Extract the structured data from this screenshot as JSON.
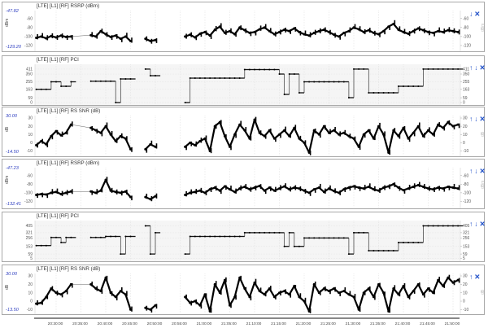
{
  "chart_data": {
    "type": "scatter",
    "x_start": "20:26:00",
    "x_step": "1 min",
    "x_ticks": [
      "20:30:00",
      "20:35:00",
      "20:40:00",
      "20:45:00",
      "20:50:00",
      "20:55:00",
      "21:00:00",
      "21:05:00",
      "21:10:00",
      "21:15:00",
      "21:20:00",
      "21:25:00",
      "21:30:00",
      "21:35:00",
      "21:40:00",
      "21:45:00",
      "21:50:00"
    ],
    "grid": true,
    "panels": [
      {
        "kind": "signal",
        "title": "[LTE] [L1] [RF] RSRP (dBm)",
        "unit": "dBm",
        "max_label": "-47.82",
        "min_label": "-129.20",
        "ylim": [
          -129.2,
          -47.82
        ],
        "yticks": [
          -60,
          -80,
          -100,
          -120
        ],
        "icons": [
          "arrow-down",
          "close"
        ],
        "values": [
          -103,
          -100,
          -104,
          -99,
          -102,
          -98,
          -101,
          -100,
          null,
          null,
          null,
          -97,
          -100,
          -88,
          -95,
          -101,
          -98,
          -105,
          -100,
          -110,
          null,
          null,
          -105,
          -110,
          -108,
          null,
          null,
          null,
          null,
          null,
          -100,
          -96,
          -102,
          -94,
          -90,
          -98,
          -85,
          -78,
          -92,
          -88,
          -95,
          -80,
          -86,
          -92,
          -90,
          -84,
          -80,
          -88,
          -95,
          -90,
          -85,
          -88,
          -82,
          -90,
          -95,
          -98,
          -92,
          -88,
          -85,
          -90,
          -96,
          -100,
          -92,
          -88,
          -80,
          -84,
          -90,
          -86,
          -92,
          -95,
          -88,
          -78,
          -72,
          -85,
          -90,
          -94,
          -88,
          -82,
          -86,
          -90,
          -92,
          -88,
          -90,
          -86,
          -88,
          -90
        ]
      },
      {
        "kind": "step",
        "title": "[LTE] [L1] [RF] PCI",
        "unit": "",
        "max_label": "",
        "min_label": "",
        "ylim": [
          -10,
          440
        ],
        "yticks": [
          411,
          350,
          255,
          163,
          59,
          0
        ],
        "icons": [
          "arrow-up",
          "arrow-down",
          "close"
        ],
        "values": [
          163,
          163,
          163,
          255,
          255,
          200,
          200,
          255,
          null,
          null,
          null,
          262,
          262,
          262,
          262,
          262,
          0,
          290,
          290,
          290,
          null,
          null,
          411,
          330,
          330,
          null,
          null,
          null,
          null,
          null,
          0,
          300,
          300,
          300,
          300,
          300,
          300,
          300,
          300,
          300,
          300,
          300,
          405,
          405,
          405,
          405,
          405,
          405,
          405,
          350,
          100,
          350,
          350,
          120,
          255,
          255,
          255,
          255,
          255,
          255,
          255,
          255,
          255,
          60,
          411,
          411,
          411,
          120,
          120,
          120,
          120,
          120,
          120,
          200,
          200,
          200,
          200,
          200,
          411,
          411,
          411,
          411,
          411,
          411,
          411,
          411
        ]
      },
      {
        "kind": "signal",
        "title": "[LTE] [L1] [RF] RS SNR (dB)",
        "unit": "dB",
        "max_label": "30.00",
        "min_label": "-14.50",
        "ylim": [
          -14.5,
          30
        ],
        "yticks": [
          30,
          20,
          10,
          0,
          -10
        ],
        "icons": [
          "arrow-up",
          "arrow-down",
          "close"
        ],
        "values": [
          -3,
          2,
          -2,
          8,
          14,
          9,
          12,
          22,
          null,
          null,
          null,
          18,
          15,
          12,
          20,
          10,
          2,
          8,
          5,
          -8,
          null,
          null,
          -8,
          -2,
          -5,
          null,
          null,
          null,
          null,
          null,
          -5,
          0,
          -3,
          2,
          5,
          -10,
          20,
          25,
          8,
          -5,
          10,
          22,
          15,
          5,
          28,
          12,
          8,
          15,
          5,
          10,
          15,
          8,
          18,
          5,
          0,
          -12,
          15,
          10,
          20,
          12,
          15,
          10,
          12,
          8,
          5,
          -5,
          10,
          15,
          5,
          20,
          10,
          -12,
          15,
          8,
          18,
          5,
          12,
          20,
          8,
          15,
          10,
          22,
          18,
          25,
          20,
          22
        ]
      },
      {
        "kind": "signal",
        "title": "[LTE] [L1] [RF] RSRP (dBm)",
        "unit": "dBm",
        "max_label": "-47.23",
        "min_label": "-132.41",
        "ylim": [
          -132.41,
          -47.23
        ],
        "yticks": [
          -60,
          -80,
          -100,
          -120
        ],
        "icons": [
          "arrow-up",
          "arrow-down",
          "close"
        ],
        "values": [
          -105,
          -103,
          -104,
          -100,
          -98,
          -103,
          -100,
          -97,
          null,
          null,
          null,
          -97,
          -100,
          -95,
          -70,
          -95,
          -98,
          -100,
          -97,
          -110,
          null,
          null,
          -110,
          -115,
          -108,
          null,
          null,
          null,
          null,
          null,
          -105,
          -100,
          -98,
          -95,
          -100,
          -92,
          -88,
          -95,
          -85,
          -92,
          -98,
          -90,
          -86,
          -92,
          -88,
          -84,
          -95,
          -88,
          -95,
          -90,
          -85,
          -92,
          -88,
          -90,
          -95,
          -100,
          -92,
          -88,
          -98,
          -90,
          -96,
          -100,
          -92,
          -88,
          -85,
          -88,
          -90,
          -86,
          -92,
          -95,
          -88,
          -85,
          -80,
          -88,
          -94,
          -90,
          -86,
          -82,
          -86,
          -90,
          -92,
          -88,
          -90,
          -86,
          -88,
          -90
        ]
      },
      {
        "kind": "step",
        "title": "[LTE] [L1] [RF] PCI",
        "unit": "",
        "max_label": "",
        "min_label": "",
        "ylim": [
          -10,
          440
        ],
        "yticks": [
          405,
          321,
          256,
          153,
          59,
          5
        ],
        "icons": [
          "arrow-up",
          "arrow-down",
          "close"
        ],
        "values": [
          163,
          163,
          163,
          262,
          262,
          200,
          262,
          262,
          null,
          null,
          null,
          262,
          262,
          262,
          275,
          275,
          275,
          59,
          275,
          275,
          null,
          null,
          405,
          59,
          321,
          null,
          null,
          null,
          null,
          null,
          59,
          275,
          275,
          275,
          275,
          275,
          275,
          275,
          275,
          275,
          275,
          275,
          321,
          321,
          321,
          321,
          321,
          321,
          321,
          321,
          153,
          321,
          153,
          153,
          256,
          256,
          256,
          256,
          256,
          256,
          256,
          256,
          256,
          59,
          321,
          321,
          321,
          100,
          100,
          100,
          100,
          100,
          100,
          200,
          200,
          200,
          200,
          200,
          405,
          405,
          405,
          405,
          405,
          405,
          405,
          405
        ]
      },
      {
        "kind": "signal",
        "title": "[LTE] [L1] [RF] RS SNR (dB)",
        "unit": "dB",
        "max_label": "30.00",
        "min_label": "-13.50",
        "ylim": [
          -13.5,
          30
        ],
        "yticks": [
          30,
          20,
          10,
          0,
          -10
        ],
        "icons": [
          "arrow-up",
          "close"
        ],
        "values": [
          -3,
          -2,
          5,
          15,
          10,
          8,
          12,
          20,
          null,
          null,
          null,
          20,
          15,
          12,
          28,
          10,
          5,
          12,
          8,
          -10,
          null,
          null,
          -8,
          -10,
          -5,
          null,
          null,
          null,
          null,
          null,
          5,
          -2,
          0,
          -5,
          8,
          -12,
          20,
          10,
          25,
          -5,
          5,
          28,
          15,
          5,
          22,
          12,
          8,
          15,
          5,
          10,
          12,
          8,
          18,
          5,
          0,
          -12,
          20,
          10,
          15,
          12,
          15,
          10,
          12,
          8,
          5,
          -10,
          10,
          15,
          5,
          20,
          10,
          -12,
          15,
          8,
          18,
          5,
          12,
          20,
          8,
          15,
          10,
          25,
          18,
          28,
          22,
          25
        ]
      }
    ]
  },
  "colors": {
    "accent": "#2050c8",
    "minmax": "#2f3fc0",
    "series": "#000000"
  }
}
